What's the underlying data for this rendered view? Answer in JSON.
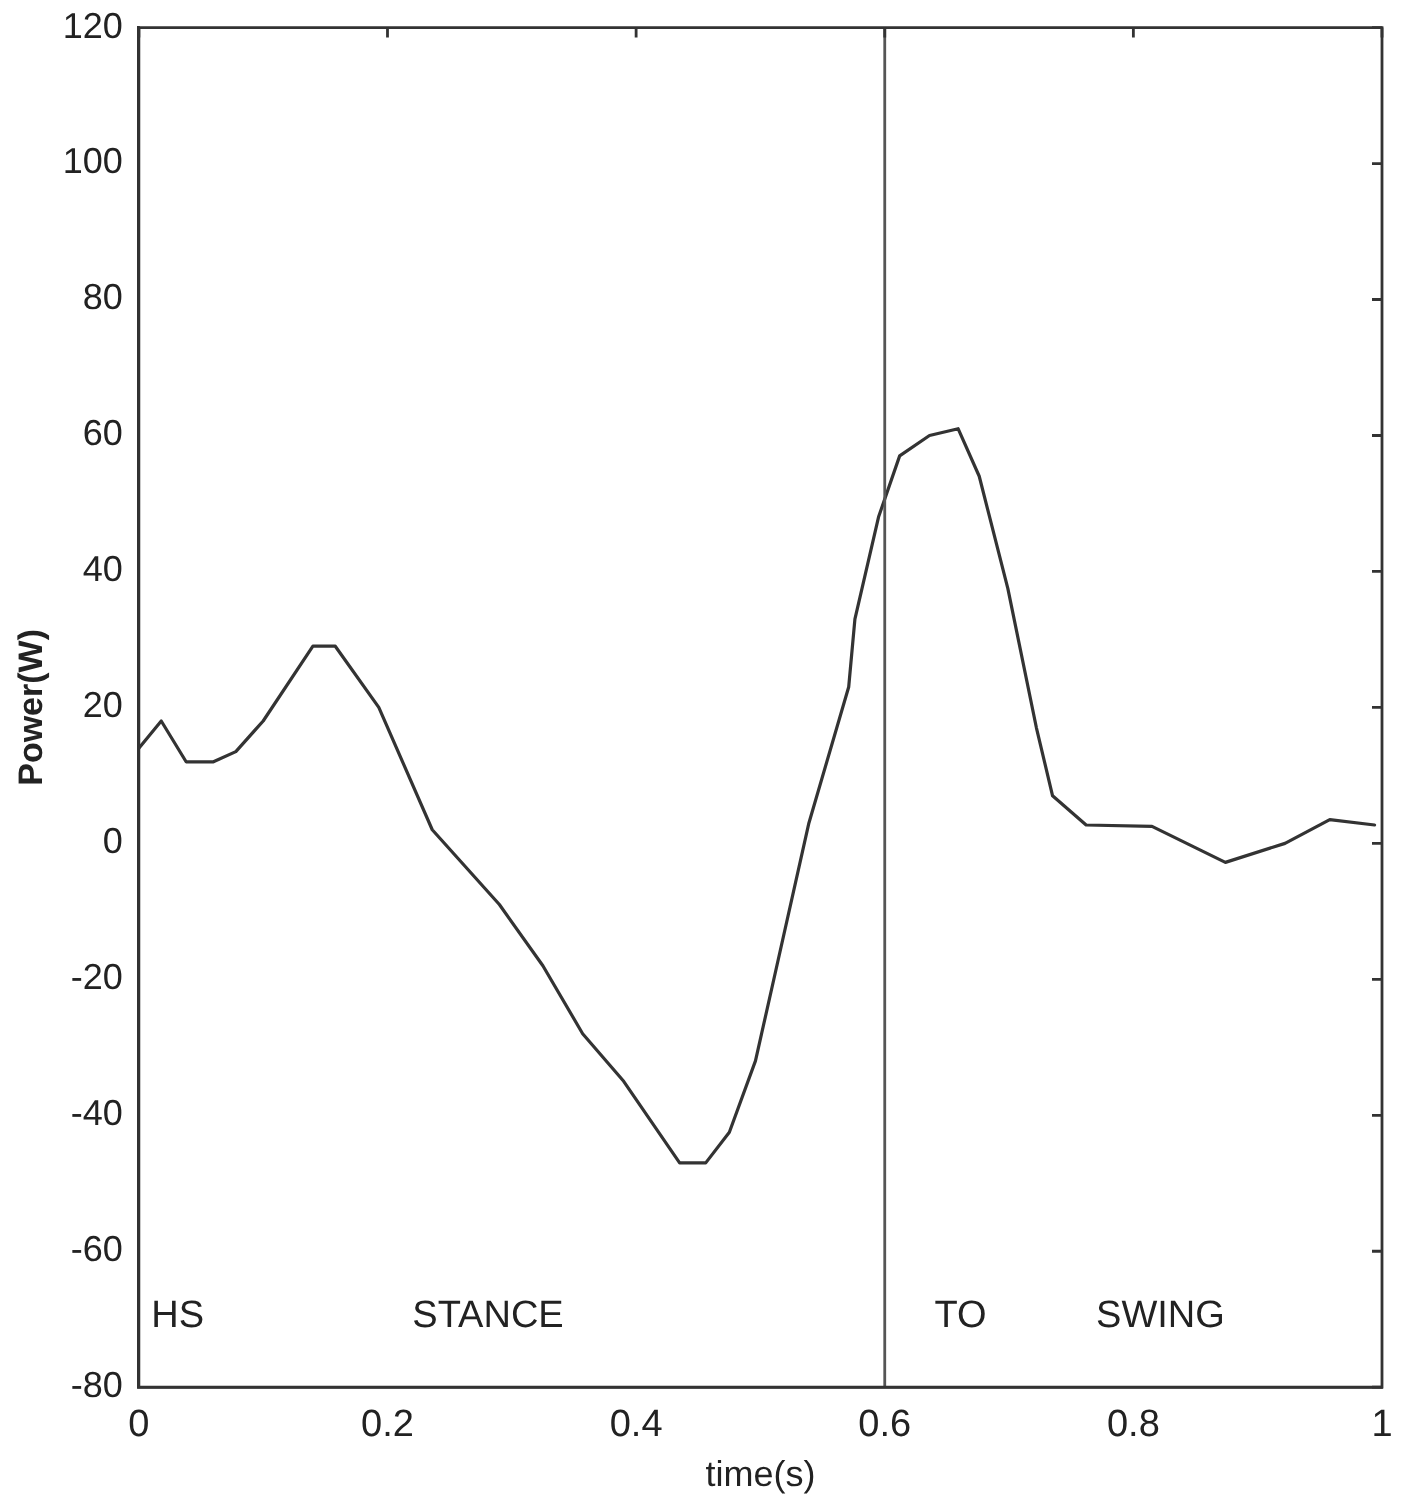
{
  "chart_data": {
    "type": "line",
    "xlabel": "time(s)",
    "ylabel": "Power(W)",
    "xlim": [
      0,
      1
    ],
    "xticks": [
      0,
      0.2,
      0.4,
      0.6,
      0.8,
      1
    ],
    "ylim": [
      -80,
      120
    ],
    "yticks": [
      -80,
      -60,
      -40,
      -20,
      0,
      20,
      40,
      60,
      80,
      100,
      120
    ],
    "grid": false,
    "legend": false,
    "marker": "none",
    "line_style": "solid",
    "series": [
      {
        "color": "#333333",
        "x": [
          0,
          0.018,
          0.038,
          0.06,
          0.078,
          0.1,
          0.14,
          0.158,
          0.193,
          0.236,
          0.29,
          0.325,
          0.357,
          0.39,
          0.435,
          0.456,
          0.475,
          0.496,
          0.512,
          0.539,
          0.571,
          0.576,
          0.595,
          0.612,
          0.636,
          0.659,
          0.676,
          0.699,
          0.722,
          0.735,
          0.762,
          0.815,
          0.874,
          0.922,
          0.958,
          0.994
        ],
        "values": [
          14,
          18,
          12,
          12,
          13.5,
          18,
          29,
          29,
          20,
          2,
          -9,
          -18,
          -28,
          -35,
          -47,
          -47,
          -42.5,
          -32,
          -19,
          3,
          23,
          33,
          48,
          57,
          60,
          61,
          54,
          37.5,
          17,
          7,
          2.7,
          2.5,
          -2.8,
          0,
          3.5,
          2.7
        ]
      }
    ],
    "ref_lines": [
      {
        "axis": "x",
        "value": 0.6,
        "color": "#555555"
      }
    ],
    "annotations": [
      "HS",
      "STANCE",
      "TO",
      "SWING"
    ]
  }
}
